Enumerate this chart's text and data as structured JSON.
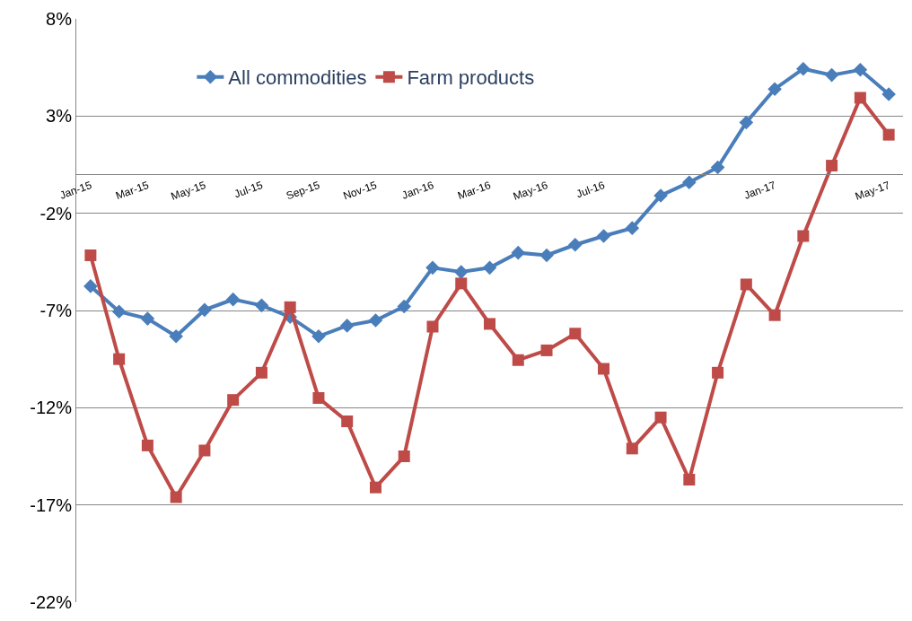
{
  "chart_data": {
    "type": "line",
    "categories": [
      "Jan-15",
      null,
      "Mar-15",
      null,
      "May-15",
      null,
      "Jul-15",
      null,
      "Sep-15",
      null,
      "Nov-15",
      null,
      "Jan-16",
      null,
      "Mar-16",
      null,
      "May-16",
      null,
      "Jul-16",
      null,
      null,
      null,
      null,
      null,
      "Jan-17",
      null,
      null,
      null,
      "May-17"
    ],
    "series": [
      {
        "name": "All commodities",
        "color": "#4a7ebb",
        "marker": "diamond",
        "values": [
          -5.75,
          -7.06,
          -7.42,
          -8.33,
          -6.97,
          -6.43,
          -6.74,
          -7.33,
          -8.33,
          -7.78,
          -7.51,
          -6.79,
          -4.8,
          -5.02,
          -4.8,
          -4.03,
          -4.16,
          -3.62,
          -3.17,
          -2.76,
          -1.09,
          -0.41,
          0.36,
          2.67,
          4.39,
          5.43,
          5.11,
          5.38,
          4.12
        ]
      },
      {
        "name": "Farm products",
        "color": "#be4b48",
        "marker": "square",
        "values": [
          -4.16,
          -9.5,
          -13.94,
          -16.6,
          -14.2,
          -11.6,
          -10.2,
          -6.83,
          -11.5,
          -12.7,
          -16.1,
          -14.5,
          -7.83,
          -5.61,
          -7.69,
          -9.55,
          -9.05,
          -8.19,
          -10.0,
          -14.1,
          -12.5,
          -15.7,
          -10.2,
          -5.66,
          -7.24,
          -3.17,
          0.45,
          3.94,
          2.04
        ]
      }
    ],
    "ylim": [
      -22,
      8
    ],
    "yticks": [
      {
        "value": -22,
        "label": "-22%"
      },
      {
        "value": -17,
        "label": "-17%"
      },
      {
        "value": -12,
        "label": "-12%"
      },
      {
        "value": -7,
        "label": "-7%"
      },
      {
        "value": -2,
        "label": "-2%"
      },
      {
        "value": 3,
        "label": "3%"
      },
      {
        "value": 8,
        "label": "8%"
      }
    ],
    "grid": "y",
    "legend": "top",
    "line_style": "solid"
  }
}
